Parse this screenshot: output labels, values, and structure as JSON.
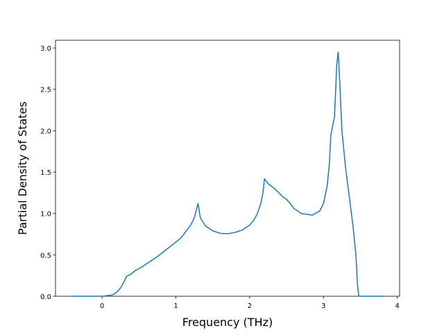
{
  "chart_data": {
    "type": "line",
    "x_label": "Frequency (THz)",
    "y_label": "Partial Density of States",
    "x": [
      -0.42,
      0.0,
      0.1,
      0.15,
      0.2,
      0.25,
      0.3,
      0.33,
      0.38,
      0.45,
      0.55,
      0.65,
      0.75,
      0.85,
      0.95,
      1.05,
      1.1,
      1.2,
      1.25,
      1.3,
      1.33,
      1.4,
      1.5,
      1.6,
      1.7,
      1.8,
      1.9,
      2.0,
      2.05,
      2.1,
      2.15,
      2.18,
      2.2,
      2.25,
      2.35,
      2.45,
      2.5,
      2.55,
      2.6,
      2.7,
      2.85,
      2.95,
      3.0,
      3.05,
      3.08,
      3.1,
      3.15,
      3.18,
      3.2,
      3.22,
      3.25,
      3.3,
      3.35,
      3.4,
      3.44,
      3.46,
      3.48,
      3.82
    ],
    "series": [
      {
        "color": "#1f77b4",
        "values": [
          0,
          0,
          0.01,
          0.02,
          0.05,
          0.1,
          0.18,
          0.24,
          0.26,
          0.31,
          0.36,
          0.42,
          0.48,
          0.55,
          0.62,
          0.69,
          0.74,
          0.86,
          0.95,
          1.12,
          0.95,
          0.85,
          0.79,
          0.76,
          0.755,
          0.77,
          0.8,
          0.86,
          0.91,
          0.99,
          1.12,
          1.25,
          1.42,
          1.36,
          1.29,
          1.2,
          1.17,
          1.12,
          1.06,
          1.0,
          0.98,
          1.03,
          1.12,
          1.33,
          1.6,
          1.95,
          2.17,
          2.8,
          2.95,
          2.6,
          2.0,
          1.55,
          1.2,
          0.85,
          0.5,
          0.15,
          0,
          0
        ]
      }
    ],
    "xlim": [
      -0.632,
      4.032
    ],
    "ylim": [
      0,
      3.093
    ],
    "xticks": [
      0,
      1,
      2,
      3,
      4
    ],
    "yticks": [
      {
        "value": 0,
        "label": "0.0"
      },
      {
        "value": 0.5,
        "label": "0.5"
      },
      {
        "value": 1,
        "label": "1.0"
      },
      {
        "value": 1.5,
        "label": "1.5"
      },
      {
        "value": 2,
        "label": "2.0"
      },
      {
        "value": 2.5,
        "label": "2.5"
      },
      {
        "value": 3,
        "label": "3.0"
      }
    ]
  }
}
